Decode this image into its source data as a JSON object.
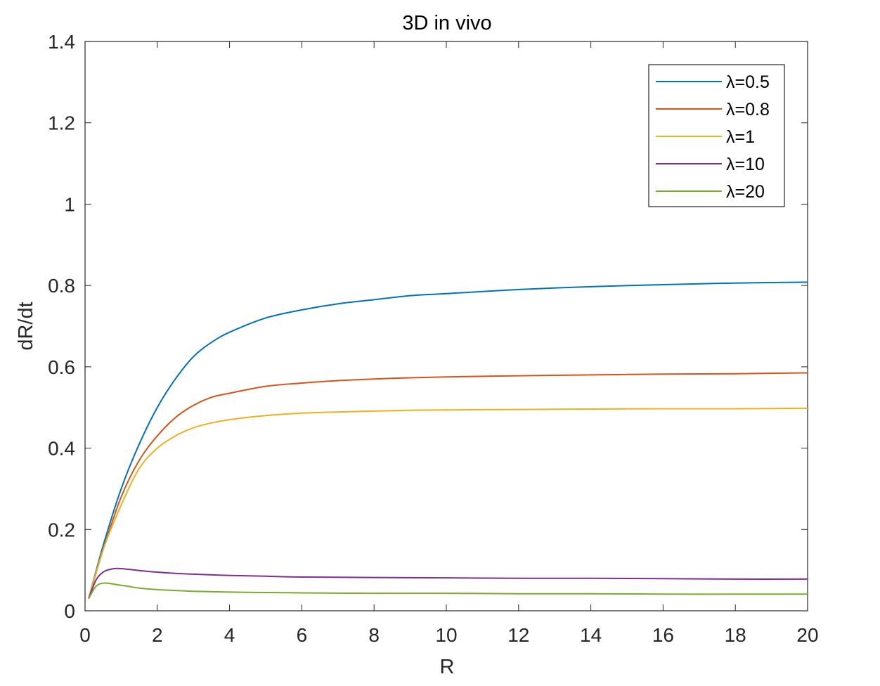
{
  "chart_data": {
    "type": "line",
    "title": "3D in vivo",
    "xlabel": "R",
    "ylabel": "dR/dt",
    "xlim": [
      0,
      20
    ],
    "ylim": [
      0,
      1.4
    ],
    "xticks": [
      0,
      2,
      4,
      6,
      8,
      10,
      12,
      14,
      16,
      18,
      20
    ],
    "xtick_labels": [
      "0",
      "2",
      "4",
      "6",
      "8",
      "10",
      "12",
      "14",
      "16",
      "18",
      "20"
    ],
    "yticks": [
      0,
      0.2,
      0.4,
      0.6,
      0.8,
      1.0,
      1.2,
      1.4
    ],
    "ytick_labels": [
      "0",
      "0.2",
      "0.4",
      "0.6",
      "0.8",
      "1",
      "1.2",
      "1.4"
    ],
    "grid": false,
    "legend": "top-right",
    "series": [
      {
        "name": "λ=0.5",
        "color": "#0072BD",
        "x": [
          0.1,
          0.5,
          1,
          1.5,
          2,
          2.5,
          3,
          3.5,
          4,
          5,
          6,
          7,
          8,
          9,
          10,
          12,
          14,
          16,
          18,
          20
        ],
        "y": [
          0.03,
          0.16,
          0.3,
          0.41,
          0.5,
          0.57,
          0.625,
          0.66,
          0.685,
          0.72,
          0.74,
          0.755,
          0.765,
          0.775,
          0.78,
          0.79,
          0.797,
          0.802,
          0.806,
          0.808
        ]
      },
      {
        "name": "λ=0.8",
        "color": "#D95319",
        "x": [
          0.1,
          0.5,
          1,
          1.5,
          2,
          2.5,
          3,
          3.5,
          4,
          5,
          6,
          7,
          8,
          9,
          10,
          12,
          14,
          16,
          18,
          20
        ],
        "y": [
          0.03,
          0.15,
          0.28,
          0.37,
          0.43,
          0.475,
          0.505,
          0.525,
          0.535,
          0.552,
          0.56,
          0.566,
          0.57,
          0.573,
          0.575,
          0.578,
          0.58,
          0.582,
          0.583,
          0.585
        ]
      },
      {
        "name": "λ=1",
        "color": "#EDB120",
        "x": [
          0.1,
          0.5,
          1,
          1.5,
          2,
          2.5,
          3,
          3.5,
          4,
          5,
          6,
          7,
          8,
          9,
          10,
          12,
          14,
          16,
          18,
          20
        ],
        "y": [
          0.03,
          0.15,
          0.26,
          0.35,
          0.4,
          0.43,
          0.45,
          0.462,
          0.47,
          0.48,
          0.486,
          0.489,
          0.491,
          0.493,
          0.494,
          0.495,
          0.496,
          0.497,
          0.497,
          0.498
        ]
      },
      {
        "name": "λ=10",
        "color": "#7E2F8E",
        "x": [
          0.1,
          0.3,
          0.5,
          0.7,
          0.9,
          1.2,
          1.5,
          2,
          2.5,
          3,
          4,
          5,
          6,
          8,
          10,
          12,
          14,
          16,
          18,
          20
        ],
        "y": [
          0.03,
          0.075,
          0.095,
          0.102,
          0.104,
          0.102,
          0.099,
          0.095,
          0.092,
          0.09,
          0.087,
          0.085,
          0.083,
          0.082,
          0.081,
          0.08,
          0.08,
          0.079,
          0.078,
          0.078
        ]
      },
      {
        "name": "λ=20",
        "color": "#77AC30",
        "x": [
          0.1,
          0.3,
          0.5,
          0.7,
          0.9,
          1.2,
          1.5,
          2,
          2.5,
          3,
          4,
          5,
          6,
          8,
          10,
          12,
          14,
          16,
          18,
          20
        ],
        "y": [
          0.03,
          0.06,
          0.068,
          0.067,
          0.064,
          0.06,
          0.056,
          0.052,
          0.05,
          0.048,
          0.046,
          0.045,
          0.044,
          0.043,
          0.043,
          0.042,
          0.042,
          0.041,
          0.041,
          0.041
        ]
      }
    ]
  }
}
